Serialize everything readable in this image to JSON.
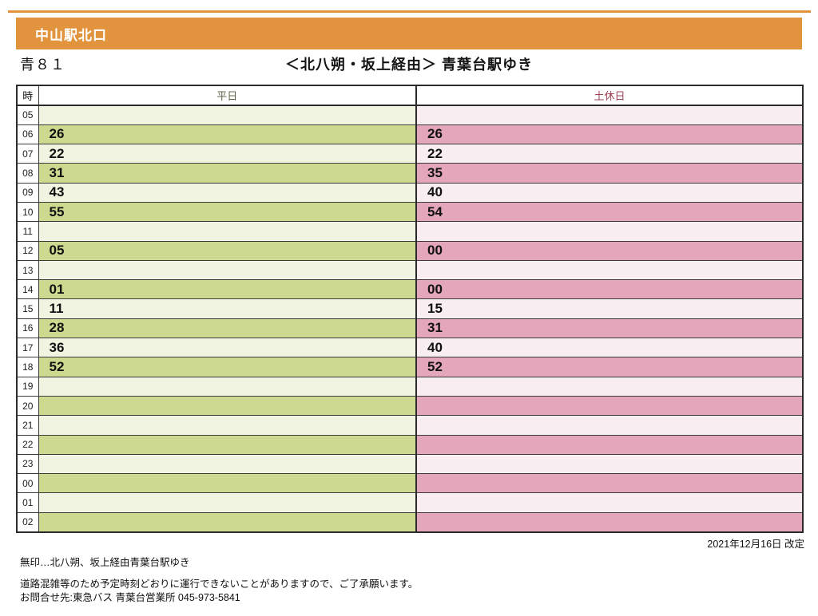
{
  "header": {
    "stop_name": "中山駅北口",
    "route_number": "青８１",
    "destination": "＜北八朔・坂上経由＞ 青葉台駅ゆき"
  },
  "colors": {
    "orange": "#E2933E",
    "green-dark": "#CCD98F",
    "green-light": "#F0F4E1",
    "pink-dark": "#E3A6BA",
    "pink-light": "#F8EDF1",
    "weekday-label": "#62644B",
    "holiday-label": "#9D4352"
  },
  "table": {
    "hour_header": "時",
    "weekday_header": "平日",
    "holiday_header": "土休日",
    "rows": [
      {
        "hour": "05",
        "weekday": "",
        "holiday": ""
      },
      {
        "hour": "06",
        "weekday": "26",
        "holiday": "26"
      },
      {
        "hour": "07",
        "weekday": "22",
        "holiday": "22"
      },
      {
        "hour": "08",
        "weekday": "31",
        "holiday": "35"
      },
      {
        "hour": "09",
        "weekday": "43",
        "holiday": "40"
      },
      {
        "hour": "10",
        "weekday": "55",
        "holiday": "54"
      },
      {
        "hour": "11",
        "weekday": "",
        "holiday": ""
      },
      {
        "hour": "12",
        "weekday": "05",
        "holiday": "00"
      },
      {
        "hour": "13",
        "weekday": "",
        "holiday": ""
      },
      {
        "hour": "14",
        "weekday": "01",
        "holiday": "00"
      },
      {
        "hour": "15",
        "weekday": "11",
        "holiday": "15"
      },
      {
        "hour": "16",
        "weekday": "28",
        "holiday": "31"
      },
      {
        "hour": "17",
        "weekday": "36",
        "holiday": "40"
      },
      {
        "hour": "18",
        "weekday": "52",
        "holiday": "52"
      },
      {
        "hour": "19",
        "weekday": "",
        "holiday": ""
      },
      {
        "hour": "20",
        "weekday": "",
        "holiday": ""
      },
      {
        "hour": "21",
        "weekday": "",
        "holiday": ""
      },
      {
        "hour": "22",
        "weekday": "",
        "holiday": ""
      },
      {
        "hour": "23",
        "weekday": "",
        "holiday": ""
      },
      {
        "hour": "00",
        "weekday": "",
        "holiday": ""
      },
      {
        "hour": "01",
        "weekday": "",
        "holiday": ""
      },
      {
        "hour": "02",
        "weekday": "",
        "holiday": ""
      }
    ]
  },
  "footer": {
    "revision_date": "2021年12月16日  改定",
    "legend": "無印…北八朔、坂上経由青葉台駅ゆき",
    "caution": "道路混雑等のため予定時刻どおりに運行できないことがありますので、ご了承願います。",
    "contact": "お問合せ先:東急バス  青葉台営業所  045-973-5841"
  }
}
